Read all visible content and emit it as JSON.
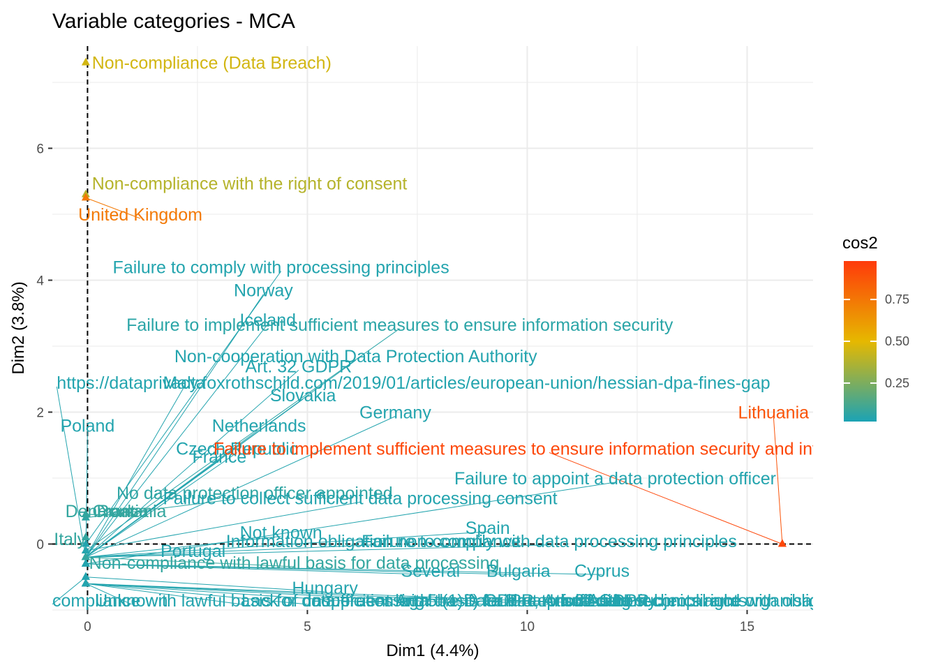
{
  "chart_data": {
    "type": "scatter",
    "title": "Variable categories - MCA",
    "xlabel": "Dim1 (4.4%)",
    "ylabel": "Dim2 (3.8%)",
    "xlim": [
      -0.8,
      16.5
    ],
    "ylim": [
      -1.0,
      7.55
    ],
    "x_ticks": [
      0,
      5,
      10,
      15
    ],
    "y_ticks": [
      0,
      2,
      4,
      6
    ],
    "grid": true,
    "reference_lines": {
      "x": 0,
      "y": 0,
      "style": "dashed"
    },
    "legend": {
      "title": "cos2",
      "placement": "right",
      "ticks": [
        0.25,
        0.5,
        0.75
      ],
      "colors": [
        "#1ba3b5",
        "#e6b800",
        "#ff3a0a"
      ]
    },
    "points": [
      {
        "label": "Non-compliance (Data Breach)",
        "x": -0.04,
        "y": 7.3,
        "cos2": 0.45,
        "lx": 0.1,
        "ly": 7.3,
        "anchor": "start"
      },
      {
        "label": "Non-compliance with the right of consent",
        "x": -0.04,
        "y": 5.3,
        "cos2": 0.38,
        "lx": 0.1,
        "ly": 5.47,
        "anchor": "start"
      },
      {
        "label": "United Kingdom",
        "x": -0.04,
        "y": 5.25,
        "cos2": 0.75,
        "lx": 1.2,
        "ly": 5.0,
        "anchor": "middle"
      },
      {
        "label": "Failure to comply with processing principles",
        "x": -0.04,
        "y": 0.0,
        "cos2": 0.02,
        "lx": 4.4,
        "ly": 4.2,
        "anchor": "middle"
      },
      {
        "label": "Norway",
        "x": -0.04,
        "y": -0.2,
        "cos2": 0.02,
        "lx": 4.0,
        "ly": 3.85,
        "anchor": "middle"
      },
      {
        "label": "Iceland",
        "x": -0.04,
        "y": -0.2,
        "cos2": 0.02,
        "lx": 4.1,
        "ly": 3.4,
        "anchor": "middle"
      },
      {
        "label": "Failure to implement sufficient measures to ensure information security",
        "x": -0.04,
        "y": -0.1,
        "cos2": 0.04,
        "lx": 7.1,
        "ly": 3.33,
        "anchor": "middle"
      },
      {
        "label": "Non-cooperation with Data Protection Authority",
        "x": -0.04,
        "y": -0.2,
        "cos2": 0.02,
        "lx": 6.1,
        "ly": 2.85,
        "anchor": "middle"
      },
      {
        "label": "Art. 32 GDPR",
        "x": -0.04,
        "y": -0.2,
        "cos2": 0.02,
        "lx": 4.8,
        "ly": 2.7,
        "anchor": "middle"
      },
      {
        "label": "Malta",
        "x": -0.04,
        "y": -0.2,
        "cos2": 0.02,
        "lx": 2.2,
        "ly": 2.45,
        "anchor": "middle"
      },
      {
        "label": "https://dataprivacy.foxrothschild.com/2019/01/articles/european-union/hessian-dpa-fines-gap",
        "x": -0.04,
        "y": -0.2,
        "cos2": 0.02,
        "lx": -0.7,
        "ly": 2.45,
        "anchor": "start"
      },
      {
        "label": "Slovakia",
        "x": -0.04,
        "y": -0.2,
        "cos2": 0.02,
        "lx": 4.9,
        "ly": 2.26,
        "anchor": "middle"
      },
      {
        "label": "Germany",
        "x": -0.04,
        "y": -0.2,
        "cos2": 0.02,
        "lx": 7.0,
        "ly": 2.0,
        "anchor": "middle"
      },
      {
        "label": "Lithuania",
        "x": 15.8,
        "y": 0.0,
        "cos2": 0.9,
        "lx": 15.6,
        "ly": 2.0,
        "anchor": "middle"
      },
      {
        "label": "Poland",
        "x": -0.04,
        "y": -0.2,
        "cos2": 0.02,
        "lx": 0.0,
        "ly": 1.8,
        "anchor": "middle"
      },
      {
        "label": "Netherlands",
        "x": -0.04,
        "y": -0.2,
        "cos2": 0.02,
        "lx": 3.9,
        "ly": 1.8,
        "anchor": "middle"
      },
      {
        "label": "Czech Republic",
        "x": -0.04,
        "y": -0.2,
        "cos2": 0.02,
        "lx": 3.4,
        "ly": 1.45,
        "anchor": "middle"
      },
      {
        "label": "France",
        "x": -0.04,
        "y": -0.2,
        "cos2": 0.02,
        "lx": 3.0,
        "ly": 1.33,
        "anchor": "middle"
      },
      {
        "label": "Failure to implement sufficient measures to ensure information security and information",
        "x": 15.8,
        "y": 0.0,
        "cos2": 0.95,
        "lx": 10.5,
        "ly": 1.45,
        "anchor": "end-clip"
      },
      {
        "label": "Failure to appoint a data protection officer",
        "x": -0.04,
        "y": -0.3,
        "cos2": 0.02,
        "lx": 12.0,
        "ly": 1.0,
        "anchor": "middle"
      },
      {
        "label": "No data protection officer appointed",
        "x": -0.04,
        "y": 0.4,
        "cos2": 0.05,
        "lx": 3.8,
        "ly": 0.78,
        "anchor": "middle"
      },
      {
        "label": "Failure to collect sufficient data processing consent",
        "x": -0.04,
        "y": -0.1,
        "cos2": 0.02,
        "lx": 6.2,
        "ly": 0.7,
        "anchor": "middle"
      },
      {
        "label": "Denmark",
        "x": -0.04,
        "y": 0.45,
        "cos2": 0.06,
        "lx": 0.3,
        "ly": 0.5,
        "anchor": "middle"
      },
      {
        "label": "Croatia",
        "x": -0.04,
        "y": 0.45,
        "cos2": 0.06,
        "lx": 0.75,
        "ly": 0.5,
        "anchor": "middle"
      },
      {
        "label": "Romania",
        "x": -0.04,
        "y": 0.45,
        "cos2": 0.06,
        "lx": 1.0,
        "ly": 0.5,
        "anchor": "middle"
      },
      {
        "label": "Spain",
        "x": -0.04,
        "y": -0.2,
        "cos2": 0.02,
        "lx": 9.1,
        "ly": 0.25,
        "anchor": "middle"
      },
      {
        "label": "Not known",
        "x": -0.04,
        "y": -0.2,
        "cos2": 0.02,
        "lx": 4.4,
        "ly": 0.18,
        "anchor": "middle"
      },
      {
        "label": "Italy",
        "x": -0.04,
        "y": 0.1,
        "cos2": 0.06,
        "lx": -0.4,
        "ly": 0.08,
        "anchor": "middle"
      },
      {
        "label": "Information obligation non-compliance",
        "x": -0.04,
        "y": -0.2,
        "cos2": 0.02,
        "lx": 6.5,
        "ly": 0.05,
        "anchor": "middle"
      },
      {
        "label": "Failure to comply with data processing principles",
        "x": -0.04,
        "y": -0.2,
        "cos2": 0.02,
        "lx": 10.5,
        "ly": 0.05,
        "anchor": "middle"
      },
      {
        "label": "Portugal",
        "x": -0.04,
        "y": -0.2,
        "cos2": 0.02,
        "lx": 2.4,
        "ly": -0.1,
        "anchor": "middle"
      },
      {
        "label": "Non-compliance with lawful basis for data processing",
        "x": -0.04,
        "y": -0.2,
        "cos2": 0.06,
        "lx": 4.7,
        "ly": -0.28,
        "anchor": "middle"
      },
      {
        "label": "Several",
        "x": -0.04,
        "y": -0.3,
        "cos2": 0.02,
        "lx": 7.8,
        "ly": -0.4,
        "anchor": "middle"
      },
      {
        "label": "Bulgaria",
        "x": -0.04,
        "y": -0.3,
        "cos2": 0.02,
        "lx": 9.8,
        "ly": -0.4,
        "anchor": "middle"
      },
      {
        "label": "Cyprus",
        "x": -0.04,
        "y": -0.3,
        "cos2": 0.02,
        "lx": 11.7,
        "ly": -0.4,
        "anchor": "middle"
      },
      {
        "label": "Hungary",
        "x": -0.04,
        "y": -0.5,
        "cos2": 0.02,
        "lx": 5.4,
        "ly": -0.66,
        "anchor": "middle"
      },
      {
        "label": "compliance with lawful basis for data processing",
        "x": -0.04,
        "y": -0.5,
        "cos2": 0.02,
        "lx": -0.8,
        "ly": -0.85,
        "anchor": "start"
      },
      {
        "label": "Unknown",
        "x": -0.04,
        "y": -0.6,
        "cos2": 0.02,
        "lx": 1.0,
        "ly": -0.85,
        "anchor": "middle"
      },
      {
        "label": "Lack of cooperation with the Data Protection Authority",
        "x": -0.04,
        "y": -0.6,
        "cos2": 0.02,
        "lx": 3.5,
        "ly": -0.85,
        "anchor": "start"
      },
      {
        "label": "Insufficient legal basis for data processing",
        "x": -0.04,
        "y": -0.6,
        "cos2": 0.02,
        "lx": 5.0,
        "ly": -0.85,
        "anchor": "start"
      },
      {
        "label": "Art. 5 (1) f) GDPR, Art. 32 GDPR",
        "x": -0.04,
        "y": -0.6,
        "cos2": 0.02,
        "lx": 7.0,
        "ly": -0.85,
        "anchor": "start"
      },
      {
        "label": "Failure to fulfil data subjects rights",
        "x": -0.04,
        "y": -0.6,
        "cos2": 0.02,
        "lx": 9.0,
        "ly": -0.85,
        "anchor": "start"
      },
      {
        "label": "Insufficient technical and organisational measures",
        "x": -0.04,
        "y": -0.6,
        "cos2": 0.02,
        "lx": 10.5,
        "ly": -0.85,
        "anchor": "start"
      },
      {
        "label": "Non-compliance with obligations for security",
        "x": -0.04,
        "y": -0.6,
        "cos2": 0.02,
        "lx": 12.0,
        "ly": -0.85,
        "anchor": "start"
      }
    ]
  }
}
